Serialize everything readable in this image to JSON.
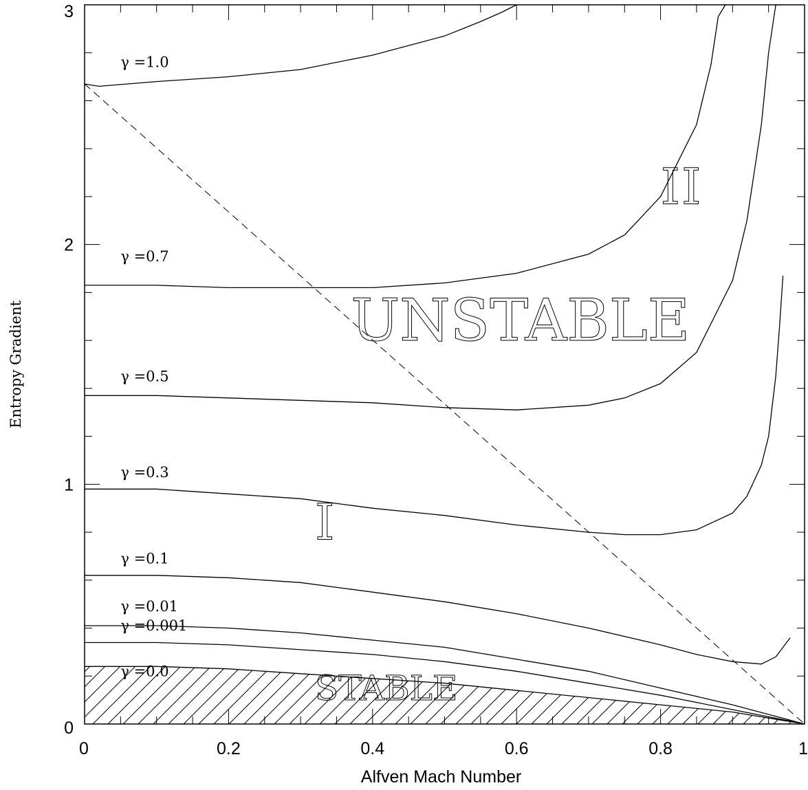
{
  "chart_data": {
    "type": "line",
    "title": "",
    "xlabel": "Alfven Mach Number",
    "ylabel": "Entropy Gradient",
    "xlim": [
      0,
      1
    ],
    "ylim": [
      0,
      3
    ],
    "x_ticks": [
      "0",
      "0.2",
      "0.4",
      "0.6",
      "0.8",
      "1"
    ],
    "y_ticks": [
      "0",
      "1",
      "2",
      "3"
    ],
    "grid": false,
    "legend": "none",
    "series": [
      {
        "name": "γ =1.0",
        "x": [
          0,
          0.02,
          0.1,
          0.2,
          0.3,
          0.4,
          0.45,
          0.5,
          0.55,
          0.58,
          0.6
        ],
        "y": [
          2.67,
          2.66,
          2.68,
          2.7,
          2.73,
          2.79,
          2.83,
          2.87,
          2.93,
          2.97,
          3.0
        ]
      },
      {
        "name": "γ =0.7",
        "x": [
          0,
          0.1,
          0.2,
          0.3,
          0.4,
          0.5,
          0.6,
          0.7,
          0.75,
          0.8,
          0.85,
          0.87,
          0.88,
          0.89,
          0.9
        ],
        "y": [
          1.83,
          1.83,
          1.82,
          1.82,
          1.82,
          1.84,
          1.88,
          1.96,
          2.04,
          2.2,
          2.5,
          2.75,
          2.95,
          3.0,
          3.0
        ]
      },
      {
        "name": "γ =0.5",
        "x": [
          0,
          0.1,
          0.2,
          0.3,
          0.4,
          0.5,
          0.6,
          0.7,
          0.75,
          0.8,
          0.85,
          0.9,
          0.92,
          0.94,
          0.95,
          0.96,
          0.97
        ],
        "y": [
          1.37,
          1.37,
          1.36,
          1.35,
          1.34,
          1.32,
          1.31,
          1.33,
          1.36,
          1.42,
          1.55,
          1.85,
          2.1,
          2.5,
          2.8,
          3.0,
          3.0
        ]
      },
      {
        "name": "γ =0.3",
        "x": [
          0,
          0.1,
          0.2,
          0.3,
          0.4,
          0.5,
          0.6,
          0.7,
          0.75,
          0.8,
          0.85,
          0.9,
          0.92,
          0.94,
          0.95,
          0.96,
          0.965,
          0.97
        ],
        "y": [
          0.98,
          0.98,
          0.96,
          0.94,
          0.9,
          0.87,
          0.83,
          0.8,
          0.79,
          0.79,
          0.81,
          0.88,
          0.95,
          1.08,
          1.2,
          1.45,
          1.65,
          1.87
        ]
      },
      {
        "name": "γ =0.1",
        "x": [
          0,
          0.1,
          0.2,
          0.3,
          0.4,
          0.5,
          0.6,
          0.7,
          0.8,
          0.85,
          0.9,
          0.94,
          0.96,
          0.98
        ],
        "y": [
          0.62,
          0.62,
          0.61,
          0.59,
          0.55,
          0.51,
          0.46,
          0.4,
          0.33,
          0.29,
          0.26,
          0.25,
          0.28,
          0.36
        ]
      },
      {
        "name": "γ =0.01",
        "x": [
          0,
          0.1,
          0.2,
          0.3,
          0.4,
          0.5,
          0.6,
          0.7,
          0.8,
          0.9,
          0.95,
          1.0
        ],
        "y": [
          0.41,
          0.41,
          0.4,
          0.38,
          0.35,
          0.32,
          0.27,
          0.22,
          0.15,
          0.08,
          0.04,
          0.0
        ]
      },
      {
        "name": "γ =0.001",
        "x": [
          0,
          0.1,
          0.2,
          0.3,
          0.4,
          0.5,
          0.6,
          0.7,
          0.8,
          0.9,
          0.95,
          1.0
        ],
        "y": [
          0.34,
          0.34,
          0.33,
          0.31,
          0.29,
          0.26,
          0.22,
          0.17,
          0.12,
          0.06,
          0.03,
          0.0
        ]
      },
      {
        "name": "γ =0.0",
        "x": [
          0,
          0.1,
          0.2,
          0.3,
          0.4,
          0.5,
          0.6,
          0.7,
          0.8,
          0.9,
          0.95,
          1.0
        ],
        "y": [
          0.24,
          0.24,
          0.23,
          0.21,
          0.19,
          0.17,
          0.14,
          0.11,
          0.08,
          0.05,
          0.025,
          0.0
        ]
      }
    ],
    "reference_line": {
      "style": "dashed",
      "x": [
        0,
        1
      ],
      "y": [
        2.67,
        0.0
      ]
    },
    "annotations": [
      {
        "text": "UNSTABLE",
        "x": 0.37,
        "y": 1.6,
        "size": "xlarge"
      },
      {
        "text": "II",
        "x": 0.8,
        "y": 2.17,
        "size": "large"
      },
      {
        "text": "I",
        "x": 0.32,
        "y": 0.77,
        "size": "large"
      },
      {
        "text": "STABLE",
        "x": 0.32,
        "y": 0.1,
        "size": "medium"
      }
    ],
    "hatched_region": {
      "label": "STABLE",
      "under_series": "γ =0.0",
      "pattern": "diagonal"
    }
  }
}
